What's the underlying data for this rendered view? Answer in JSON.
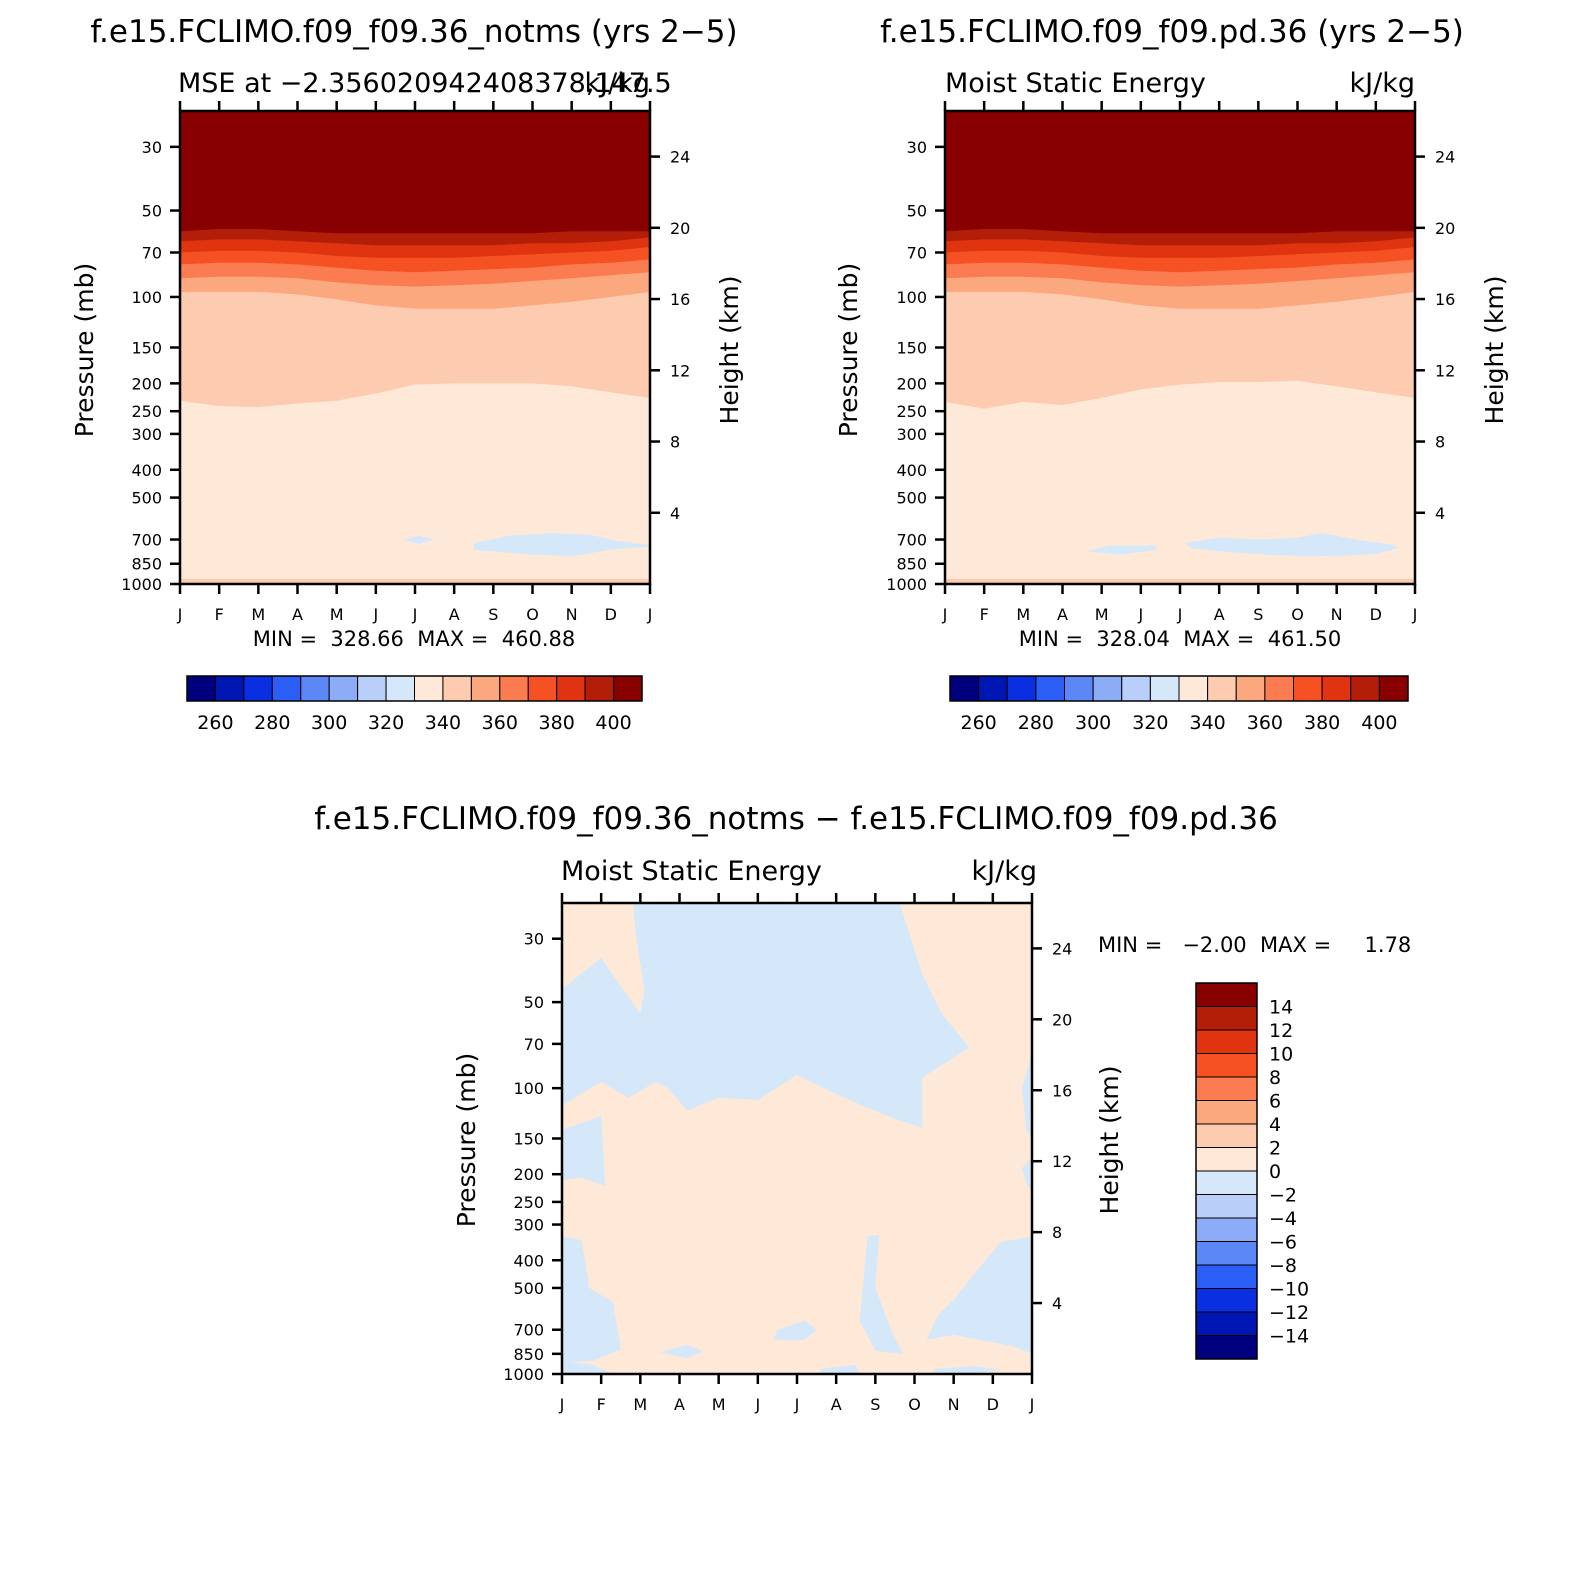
{
  "panels": [
    {
      "main_title": "f.e15.FCLIMO.f09_f09.36_notms (yrs 2−5)",
      "left_title": "MSE at −2.356020942408378,147.5",
      "units": "kJ/kg",
      "stats": "MIN =  328.66  MAX =  460.88"
    },
    {
      "main_title": "f.e15.FCLIMO.f09_f09.pd.36 (yrs 2−5)",
      "left_title": "Moist Static Energy",
      "units": "kJ/kg",
      "stats": "MIN =  328.04  MAX =  461.50"
    },
    {
      "main_title": "f.e15.FCLIMO.f09_f09.36_notms − f.e15.FCLIMO.f09_f09.pd.36",
      "left_title": "Moist Static Energy",
      "units": "kJ/kg",
      "stats": "MIN =   −2.00  MAX =     1.78"
    }
  ],
  "chart_data": [
    {
      "type": "contour",
      "title": "MSE at −2.356020942408378,147.5",
      "xlabel": "",
      "ylabel": "Pressure (mb)",
      "y2label": "Height (km)",
      "x_tick_labels": [
        "J",
        "F",
        "M",
        "A",
        "M",
        "J",
        "J",
        "A",
        "S",
        "O",
        "N",
        "D",
        "J"
      ],
      "pressure_levels": [
        30,
        50,
        70,
        100,
        150,
        200,
        250,
        300,
        400,
        500,
        700,
        850,
        1000
      ],
      "height_ticks_km": [
        4,
        8,
        12,
        16,
        20,
        24
      ],
      "units": "kJ/kg",
      "min": 328.66,
      "max": 460.88,
      "colorbar_labels": [
        "260",
        "280",
        "300",
        "320",
        "340",
        "360",
        "380",
        "400"
      ],
      "boundaries_mb": {
        "400": [
          59,
          58,
          58,
          59,
          60,
          60,
          60,
          60,
          60,
          60,
          59,
          59,
          59
        ],
        "390": [
          64,
          63,
          63,
          64,
          65,
          66,
          66,
          66,
          66,
          65,
          65,
          64,
          62
        ],
        "380": [
          70,
          69,
          69,
          70,
          72,
          73,
          73,
          73,
          72,
          71,
          70,
          69,
          67
        ],
        "370": [
          77,
          76,
          76,
          77,
          79,
          81,
          82,
          81,
          80,
          79,
          77,
          76,
          74
        ],
        "360": [
          86,
          85,
          85,
          86,
          89,
          91,
          92,
          91,
          90,
          88,
          86,
          84,
          82
        ],
        "350": [
          96,
          96,
          96,
          98,
          102,
          107,
          110,
          110,
          110,
          107,
          104,
          100,
          96
        ],
        "340": [
          230,
          240,
          242,
          235,
          230,
          217,
          202,
          200,
          200,
          200,
          205,
          215,
          225
        ]
      }
    },
    {
      "type": "contour",
      "title": "Moist Static Energy",
      "xlabel": "",
      "ylabel": "Pressure (mb)",
      "y2label": "Height (km)",
      "x_tick_labels": [
        "J",
        "F",
        "M",
        "A",
        "M",
        "J",
        "J",
        "A",
        "S",
        "O",
        "N",
        "D",
        "J"
      ],
      "pressure_levels": [
        30,
        50,
        70,
        100,
        150,
        200,
        250,
        300,
        400,
        500,
        700,
        850,
        1000
      ],
      "height_ticks_km": [
        4,
        8,
        12,
        16,
        20,
        24
      ],
      "units": "kJ/kg",
      "min": 328.04,
      "max": 461.5,
      "colorbar_labels": [
        "260",
        "280",
        "300",
        "320",
        "340",
        "360",
        "380",
        "400"
      ],
      "boundaries_mb": {
        "400": [
          59,
          58,
          58,
          59,
          60,
          60,
          60,
          60,
          60,
          60,
          59,
          59,
          59
        ],
        "390": [
          64,
          63,
          63,
          64,
          65,
          66,
          66,
          66,
          66,
          65,
          65,
          64,
          62
        ],
        "380": [
          70,
          69,
          69,
          70,
          72,
          73,
          73,
          73,
          72,
          71,
          70,
          69,
          67
        ],
        "370": [
          77,
          76,
          76,
          77,
          79,
          81,
          82,
          81,
          80,
          79,
          77,
          76,
          74
        ],
        "360": [
          86,
          85,
          85,
          86,
          89,
          91,
          92,
          91,
          90,
          88,
          86,
          84,
          82
        ],
        "350": [
          96,
          96,
          96,
          98,
          102,
          107,
          110,
          110,
          110,
          107,
          104,
          100,
          96
        ],
        "340": [
          232,
          245,
          232,
          238,
          225,
          210,
          202,
          198,
          198,
          196,
          205,
          215,
          225
        ]
      }
    },
    {
      "type": "contour",
      "title": "Moist Static Energy",
      "xlabel": "",
      "ylabel": "Pressure (mb)",
      "y2label": "Height (km)",
      "x_tick_labels": [
        "J",
        "F",
        "M",
        "A",
        "M",
        "J",
        "J",
        "A",
        "S",
        "O",
        "N",
        "D",
        "J"
      ],
      "pressure_levels": [
        30,
        50,
        70,
        100,
        150,
        200,
        250,
        300,
        400,
        500,
        700,
        850,
        1000
      ],
      "height_ticks_km": [
        4,
        8,
        12,
        16,
        20,
        24
      ],
      "units": "kJ/kg",
      "min": -2.0,
      "max": 1.78,
      "colorbar_labels": [
        "14",
        "12",
        "10",
        "8",
        "6",
        "4",
        "2",
        "0",
        "−2",
        "−4",
        "−6",
        "−8",
        "−10",
        "−12",
        "−14"
      ]
    }
  ],
  "colors": {
    "background": "#ffffff",
    "axis": "#000000",
    "ramp": [
      "#00007f",
      "#0016b3",
      "#0a2fe0",
      "#2b5ef5",
      "#5c87f7",
      "#8cacf7",
      "#b9cef8",
      "#d5e8fa",
      "#fee9d8",
      "#fdcbb0",
      "#fca87f",
      "#fb7c50",
      "#f55123",
      "#e0330f",
      "#b31e08",
      "#880000"
    ]
  }
}
